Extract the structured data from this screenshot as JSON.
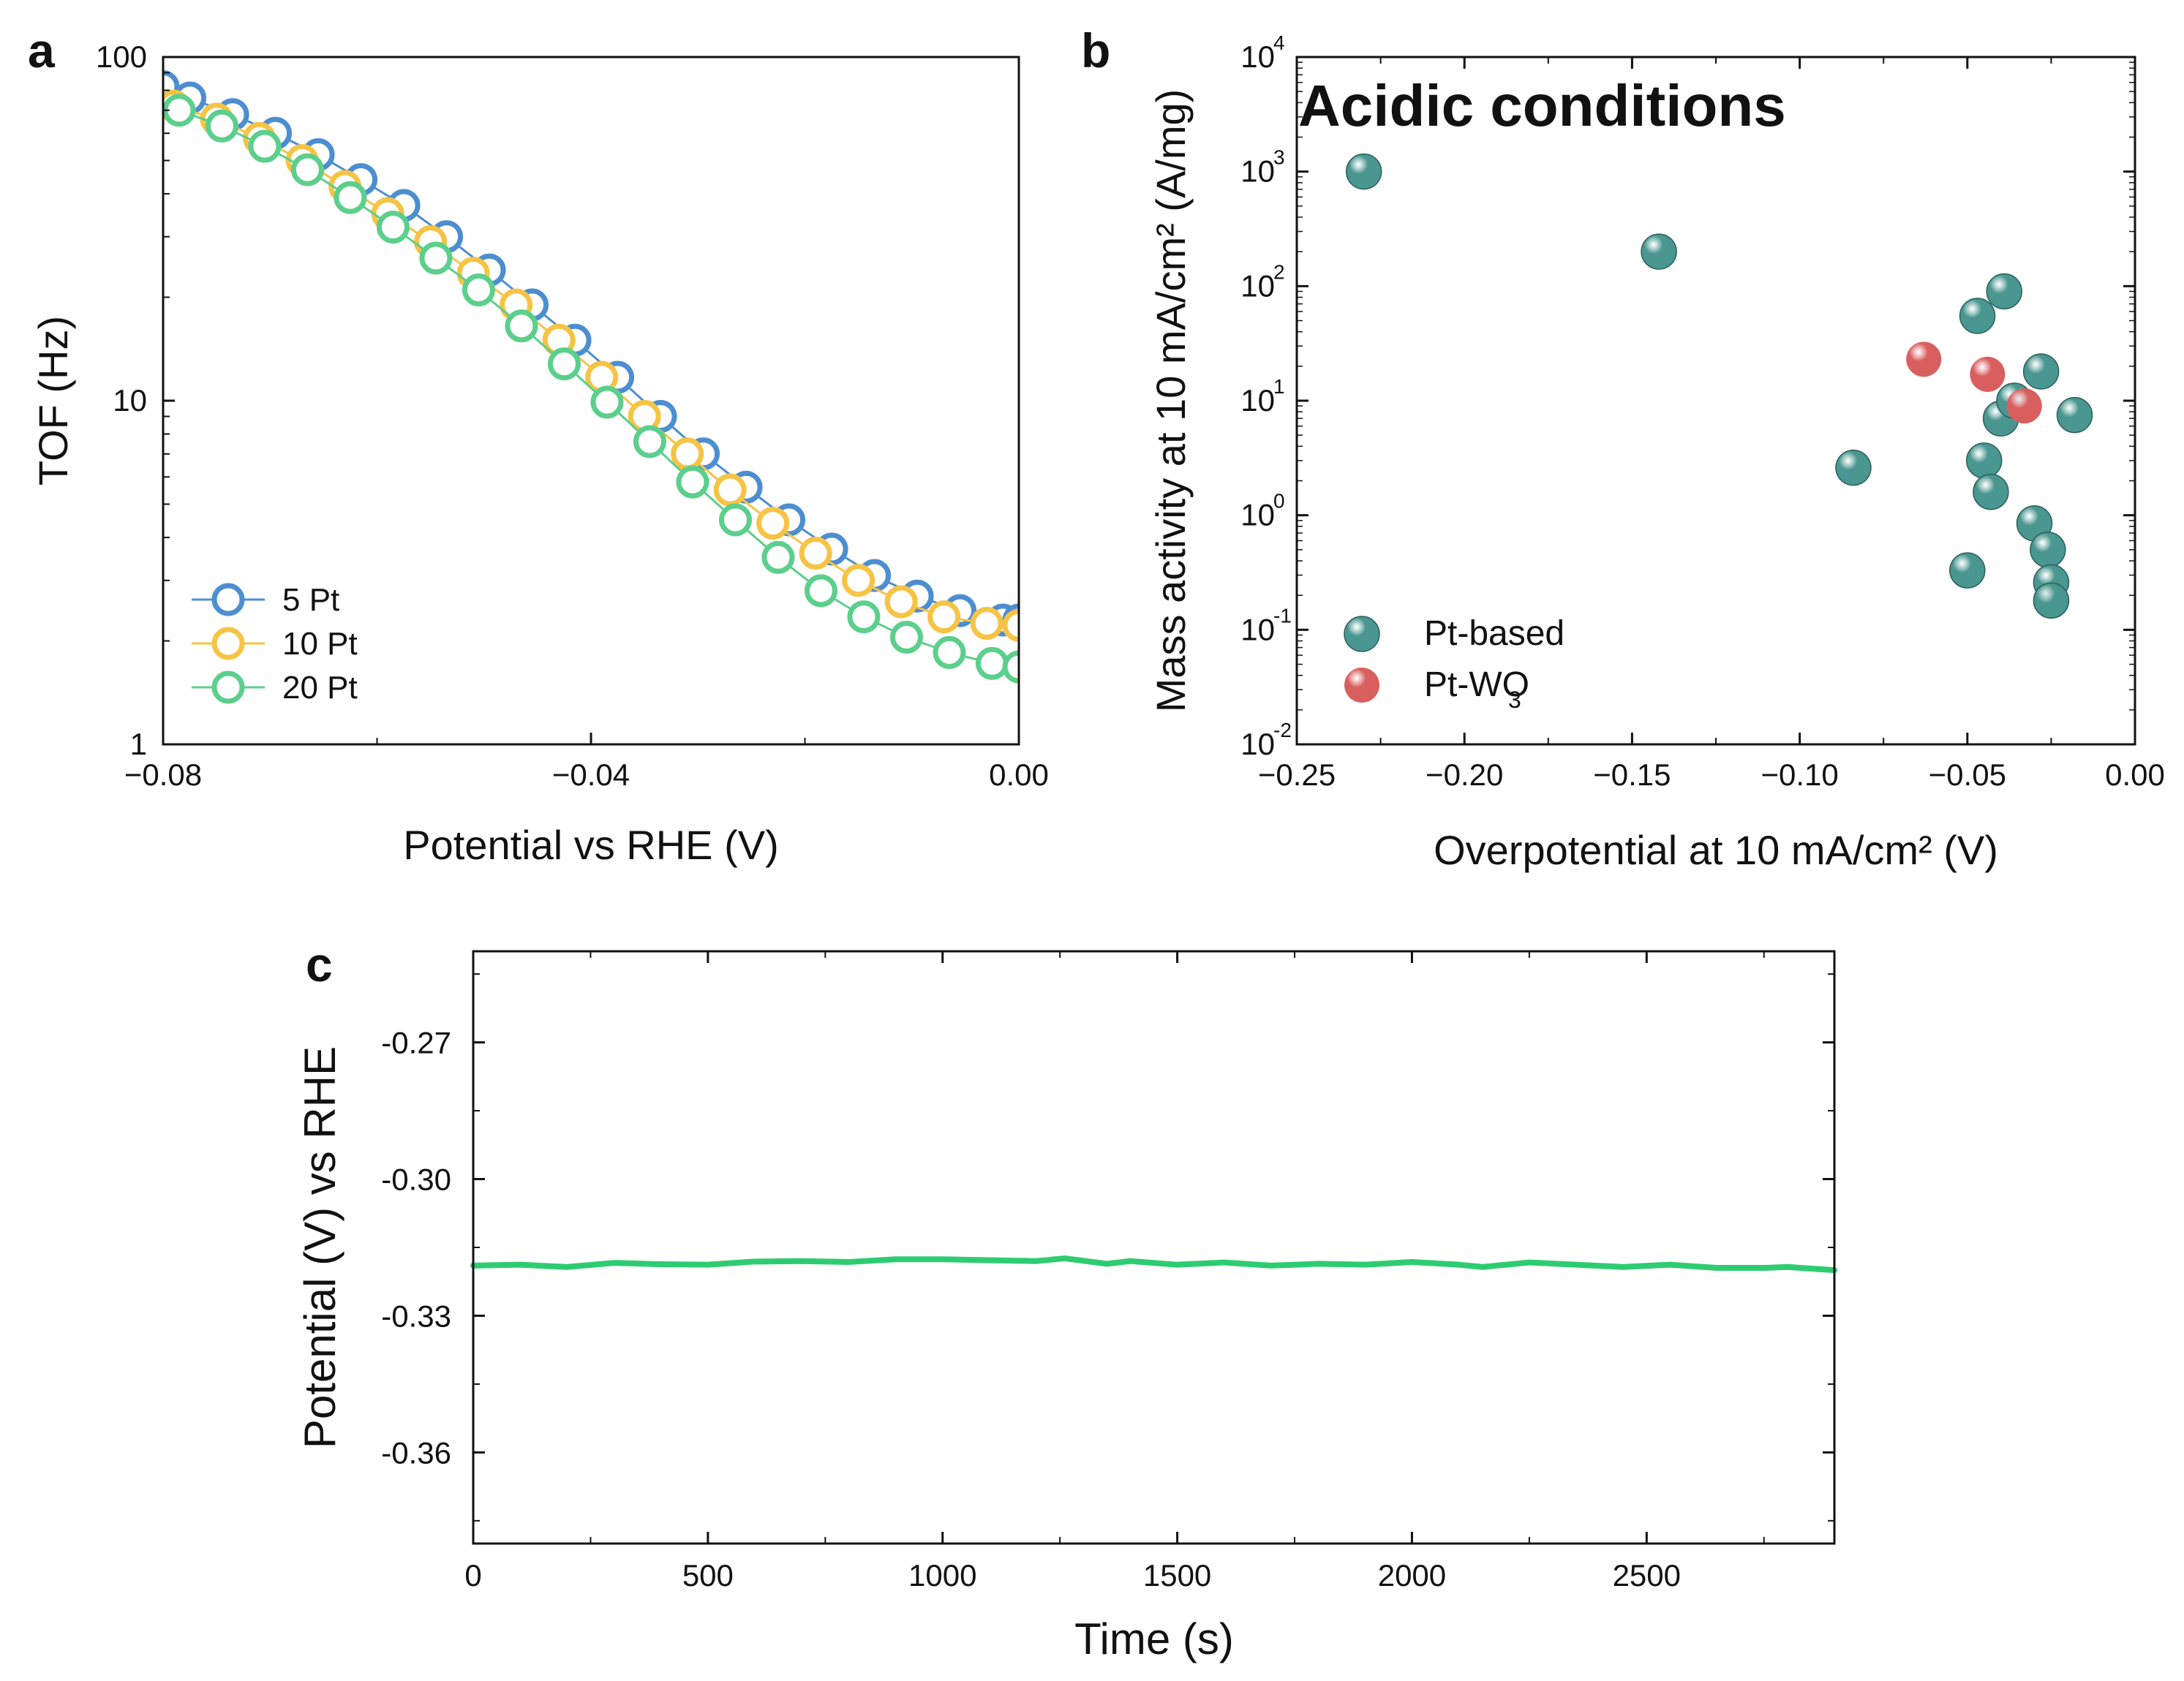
{
  "panels": {
    "a": "a",
    "b": "b",
    "c": "c"
  },
  "chart_data": [
    {
      "id": "a",
      "type": "line",
      "xlabel": "Potential vs RHE (V)",
      "ylabel": "TOF (Hz)",
      "xlim": [
        -0.08,
        0.0
      ],
      "ylim": [
        1,
        100
      ],
      "yscale": "log",
      "xticks": [
        -0.08,
        -0.04,
        0.0
      ],
      "xtick_labels": [
        "−0.08",
        "−0.04",
        "0.00"
      ],
      "yticks": [
        1,
        10,
        100
      ],
      "ytick_labels": [
        "1",
        "10",
        "100"
      ],
      "legend_position": "bottom-left",
      "series": [
        {
          "name": "5 Pt",
          "color": "#4d8ed0",
          "x": [
            -0.08,
            -0.0775,
            -0.0735,
            -0.0695,
            -0.0655,
            -0.0615,
            -0.0575,
            -0.0535,
            -0.0495,
            -0.0455,
            -0.0415,
            -0.0375,
            -0.0335,
            -0.0295,
            -0.0255,
            -0.0215,
            -0.0175,
            -0.0135,
            -0.0095,
            -0.0055,
            -0.0015,
            0.0
          ],
          "y": [
            82,
            76,
            68,
            60,
            52,
            44,
            37,
            30,
            24,
            19,
            15,
            11.7,
            9.0,
            7.0,
            5.6,
            4.5,
            3.7,
            3.1,
            2.7,
            2.45,
            2.3,
            2.3
          ]
        },
        {
          "name": "10 Pt",
          "color": "#f6c344",
          "x": [
            -0.079,
            -0.075,
            -0.071,
            -0.067,
            -0.063,
            -0.059,
            -0.055,
            -0.051,
            -0.047,
            -0.043,
            -0.039,
            -0.035,
            -0.031,
            -0.027,
            -0.023,
            -0.019,
            -0.015,
            -0.011,
            -0.007,
            -0.003,
            0.0
          ],
          "y": [
            72,
            66,
            58,
            50,
            42,
            35,
            29,
            23.5,
            19,
            15,
            11.7,
            9.0,
            7.0,
            5.5,
            4.4,
            3.6,
            3.0,
            2.6,
            2.35,
            2.25,
            2.22
          ]
        },
        {
          "name": "20 Pt",
          "color": "#5ccf8c",
          "x": [
            -0.0785,
            -0.0745,
            -0.0705,
            -0.0665,
            -0.0625,
            -0.0585,
            -0.0545,
            -0.0505,
            -0.0465,
            -0.0425,
            -0.0385,
            -0.0345,
            -0.0305,
            -0.0265,
            -0.0225,
            -0.0185,
            -0.0145,
            -0.0105,
            -0.0065,
            -0.0025,
            0.0
          ],
          "y": [
            70,
            63,
            55,
            47,
            39,
            32,
            26,
            21,
            16.5,
            12.8,
            9.9,
            7.6,
            5.8,
            4.5,
            3.5,
            2.8,
            2.35,
            2.05,
            1.85,
            1.72,
            1.68
          ]
        }
      ]
    },
    {
      "id": "b",
      "type": "scatter",
      "title": "Acidic conditions",
      "xlabel": "Overpotential at 10 mA/cm² (V)",
      "ylabel": "Mass activity at 10 mA/cm² (A/mg)",
      "xlim": [
        -0.25,
        0.0
      ],
      "ylim": [
        0.01,
        10000
      ],
      "yscale": "log",
      "xticks": [
        -0.25,
        -0.2,
        -0.15,
        -0.1,
        -0.05,
        0.0
      ],
      "xtick_labels": [
        "−0.25",
        "−0.20",
        "−0.15",
        "−0.10",
        "−0.05",
        "0.00"
      ],
      "ytick_exponents": [
        -2,
        -1,
        0,
        1,
        2,
        3,
        4
      ],
      "ytick_base": "10",
      "legend_position": "bottom-left",
      "series": [
        {
          "name": "Pt-based",
          "color": "#4a9690",
          "x": [
            -0.23,
            -0.142,
            -0.084,
            -0.047,
            -0.045,
            -0.043,
            -0.04,
            -0.039,
            -0.036,
            -0.03,
            -0.028,
            -0.026,
            -0.025,
            -0.025,
            -0.018,
            -0.05
          ],
          "y": [
            1000,
            200,
            2.6,
            55,
            3.0,
            1.6,
            7.0,
            90,
            10,
            0.85,
            18,
            0.5,
            0.26,
            0.18,
            7.5,
            0.33
          ]
        },
        {
          "name": "Pt-WO3",
          "color": "#d95f5f",
          "x": [
            -0.063,
            -0.044,
            -0.033
          ],
          "y": [
            23,
            17,
            9
          ]
        }
      ],
      "legend_labels": {
        "pt_based": "Pt-based",
        "pt_wo3_main": "Pt-WO",
        "pt_wo3_sub": "3"
      }
    },
    {
      "id": "c",
      "type": "line",
      "xlabel": "Time (s)",
      "ylabel": "Potential (V) vs RHE",
      "xlim": [
        0,
        2900
      ],
      "ylim": [
        -0.38,
        -0.25
      ],
      "xticks": [
        0,
        500,
        1000,
        1500,
        2000,
        2500
      ],
      "xtick_labels": [
        "0",
        "500",
        "1000",
        "1500",
        "2000",
        "2500"
      ],
      "yticks": [
        -0.27,
        -0.3,
        -0.33,
        -0.36
      ],
      "ytick_labels": [
        "-0.27",
        "-0.30",
        "-0.33",
        "-0.36"
      ],
      "series": [
        {
          "name": "potential",
          "color": "#2ecc71",
          "x": [
            0,
            100,
            200,
            300,
            400,
            500,
            600,
            700,
            800,
            900,
            1000,
            1100,
            1200,
            1260,
            1350,
            1400,
            1500,
            1600,
            1700,
            1800,
            1900,
            2000,
            2100,
            2150,
            2250,
            2350,
            2450,
            2550,
            2650,
            2750,
            2800,
            2900
          ],
          "y": [
            -0.319,
            -0.3188,
            -0.3193,
            -0.3184,
            -0.3187,
            -0.3188,
            -0.3181,
            -0.318,
            -0.3182,
            -0.3176,
            -0.3176,
            -0.3178,
            -0.318,
            -0.3174,
            -0.3186,
            -0.318,
            -0.3188,
            -0.3183,
            -0.319,
            -0.3186,
            -0.3188,
            -0.3182,
            -0.3188,
            -0.3193,
            -0.3183,
            -0.3188,
            -0.3193,
            -0.3188,
            -0.3195,
            -0.3195,
            -0.3193,
            -0.32
          ]
        }
      ]
    }
  ]
}
